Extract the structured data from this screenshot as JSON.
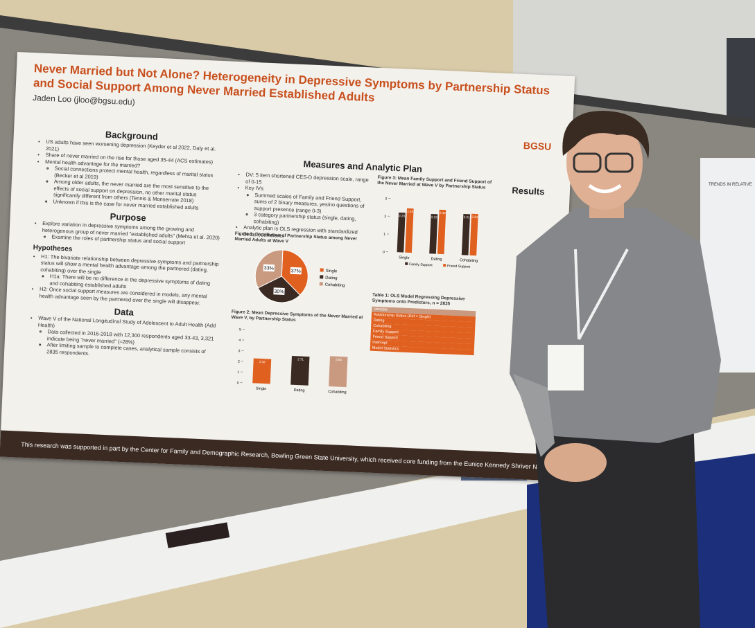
{
  "poster": {
    "title_lines": [
      "Never Married but Not Alone? Heterogeneity in Depressive Symptoms by Partnership Status",
      "and Social Support Among Never Married Established Adults"
    ],
    "author": "Jaden Loo (jloo@bgsu.edu)",
    "logo": "BGSU",
    "background": {
      "heading": "Background",
      "items": [
        {
          "text": "US adults have seen worsening depression (Keyder et al 2022, Daly et al. 2021)"
        },
        {
          "text": "Share of never married on the rise for those aged 35-44 (ACS estimates)"
        },
        {
          "text": "Mental health advantage for the married?",
          "sub": [
            "Social connections protect mental health, regardless of marital status (Becker et al 2019)",
            "Among older adults, the never married are the most sensitive to the effects of social support on depression, no other marital status significantly different from others (Tennis & Monserrate 2018)",
            "Unknown if this is the case for never married established adults"
          ]
        }
      ]
    },
    "purpose": {
      "heading": "Purpose",
      "items": [
        {
          "text": "Explore variation in depressive symptoms among the growing and heterogenous group of never married \"established adults\" (Mehta et al. 2020)",
          "sub": [
            "Examine the roles of partnership status and social support"
          ]
        }
      ]
    },
    "hypotheses": {
      "heading": "Hypotheses",
      "items": [
        {
          "text": "H1: The bivariate relationship between depressive symptoms and partnership status will show a mental health advantage among the partnered (dating, cohabiting) over the single",
          "sub": [
            "H1a: There will be no difference in the depressive symptoms of dating and cohabiting established adults"
          ]
        },
        {
          "text": "H2: Once social support measures are considered in models, any mental health advantage seen by the partnered over the single will disappear."
        }
      ]
    },
    "data": {
      "heading": "Data",
      "items": [
        {
          "text": "Wave V of the National Longitudinal Study of Adolescent to Adult Health (Add Health)",
          "sub": [
            "Data collected in 2016-2018 with 12,300 respondents aged 33-43, 3,321 indicate being \"never married\" (≈28%)",
            "After limiting sample to complete cases, analytical sample consists of 2835 respondents."
          ]
        }
      ]
    },
    "measures": {
      "heading": "Measures and Analytic Plan",
      "items": [
        {
          "text": "DV: 5 item shortened CES-D depression scale, range of 0-15"
        },
        {
          "text": "Key IVs:",
          "sub": [
            "Summed scales of Family and Friend Support, sums of 2 binary measures, yes/no questions of support presence (range 0-3)",
            "3 category partnership status (single, dating, cohabiting)"
          ]
        },
        {
          "text": "Analytic plan is OLS regression with standardized Betas coefficients"
        }
      ]
    },
    "figure1": {
      "caption": "Figure 1: Distribution of Partnership Status among Never Married Adults at Wave V",
      "categories": [
        "Single",
        "Dating",
        "Cohabiting"
      ],
      "values": [
        37,
        30,
        33
      ],
      "value_labels": [
        "37%",
        "30%",
        "33%"
      ],
      "colors": [
        "#e0601f",
        "#3b2a22",
        "#c99a80"
      ]
    },
    "figure2": {
      "caption": "Figure 2: Mean Depressive Symptoms of the Never Married at Wave V, by Partnership Status",
      "categories": [
        "Single",
        "Dating",
        "Cohabiting"
      ],
      "values": [
        2.32,
        2.71,
        2.84
      ],
      "colors": [
        "#e0601f",
        "#3b2a22",
        "#c99a80"
      ],
      "ylim": [
        0,
        5
      ],
      "yticks": [
        0,
        1,
        2,
        3,
        4,
        5
      ]
    },
    "figure3": {
      "caption": "Figure 3: Mean Family Support and Friend Support of the Never Married at Wave V by Partnership Status",
      "categories": [
        "Single",
        "Dating",
        "Cohabiting"
      ],
      "series": [
        {
          "name": "Family Support",
          "color": "#3b2a22",
          "values": [
            2.23,
            2.23,
            2.31
          ]
        },
        {
          "name": "Friend Support",
          "color": "#e0601f",
          "values": [
            2.49,
            2.49,
            2.34
          ]
        }
      ],
      "ylim": [
        0,
        3
      ],
      "yticks": [
        0,
        1,
        2,
        3
      ]
    },
    "table1": {
      "caption": "Table 1: OLS Model Regressing Depressive Symptoms onto Predictors, n = 2835",
      "rows": [
        "Variable",
        "Relationship Status (Ref = Single)",
        "Dating",
        "Cohabiting",
        "Family Support",
        "Friend Support",
        "Intercept",
        "Model Statistics"
      ]
    },
    "results": {
      "heading": "Results"
    },
    "footer": "This research was supported in part by the Center for Family and Demographic Research, Bowling Green State University, which received core funding from the Eunice Kennedy Shriver National Institute of Child"
  },
  "side_sign": "TRENDS IN RELATIVE"
}
